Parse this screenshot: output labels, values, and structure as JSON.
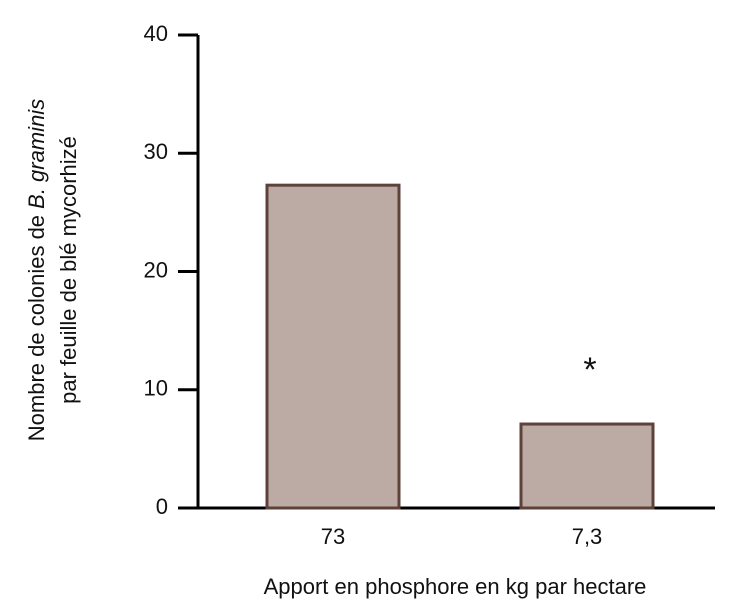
{
  "chart_data": {
    "type": "bar",
    "ylabel": {
      "line1": "Nombre de colonies de ",
      "line1_italic": "B. graminis",
      "line2": "par feuille de blé mycorhizé"
    },
    "xlabel": "Apport en phosphore en kg par hectare",
    "categories": [
      "73",
      "7,3"
    ],
    "values": [
      27.3,
      7.1
    ],
    "color": "#bcaba4",
    "edgecolor": "#5e4239",
    "annotations": [
      "*"
    ],
    "ylim": [
      0,
      40
    ],
    "yticks": [
      0,
      10,
      20,
      30,
      40
    ],
    "grid": false
  }
}
